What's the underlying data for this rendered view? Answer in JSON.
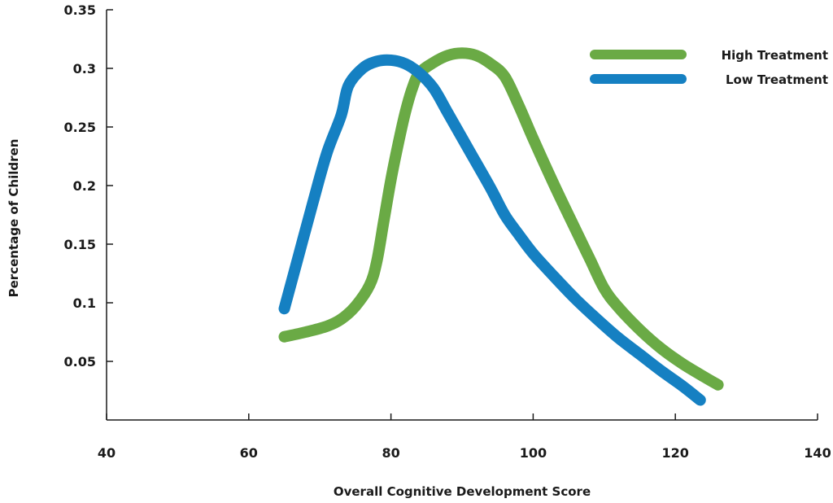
{
  "chart_data": {
    "type": "line",
    "title": "",
    "xlabel": "Overall Cognitive Development Score",
    "ylabel": "Percentage of Children",
    "xlim": [
      40,
      140
    ],
    "ylim": [
      0,
      0.35
    ],
    "x_ticks": [
      "40",
      "60",
      "80",
      "100",
      "120",
      "140"
    ],
    "x_tick_values": [
      40,
      60,
      80,
      100,
      120,
      140
    ],
    "y_ticks": [
      "0.05",
      "0.1",
      "0.15",
      "0.2",
      "0.25",
      "0.3",
      "0.35"
    ],
    "y_tick_values": [
      0.05,
      0.1,
      0.15,
      0.2,
      0.25,
      0.3,
      0.35
    ],
    "grid": false,
    "legend_position": "top-right",
    "series": [
      {
        "name": "High Treatment",
        "color": "#6aaa45",
        "points": [
          [
            65,
            0.071
          ],
          [
            68,
            0.075
          ],
          [
            71,
            0.08
          ],
          [
            73,
            0.086
          ],
          [
            75,
            0.097
          ],
          [
            77,
            0.115
          ],
          [
            78,
            0.135
          ],
          [
            79,
            0.17
          ],
          [
            80,
            0.205
          ],
          [
            81,
            0.235
          ],
          [
            82,
            0.262
          ],
          [
            83,
            0.283
          ],
          [
            84,
            0.296
          ],
          [
            86,
            0.305
          ],
          [
            88,
            0.311
          ],
          [
            90,
            0.313
          ],
          [
            92,
            0.311
          ],
          [
            94,
            0.304
          ],
          [
            96,
            0.293
          ],
          [
            98,
            0.268
          ],
          [
            100,
            0.24
          ],
          [
            103,
            0.2
          ],
          [
            106,
            0.162
          ],
          [
            108,
            0.137
          ],
          [
            110,
            0.112
          ],
          [
            112,
            0.096
          ],
          [
            115,
            0.077
          ],
          [
            118,
            0.061
          ],
          [
            121,
            0.048
          ],
          [
            124,
            0.037
          ],
          [
            126,
            0.03
          ]
        ]
      },
      {
        "name": "Low Treatment",
        "color": "#1580c2",
        "points": [
          [
            65,
            0.095
          ],
          [
            67,
            0.14
          ],
          [
            69,
            0.185
          ],
          [
            71,
            0.228
          ],
          [
            73,
            0.26
          ],
          [
            74,
            0.285
          ],
          [
            76,
            0.3
          ],
          [
            78,
            0.306
          ],
          [
            80,
            0.307
          ],
          [
            82,
            0.304
          ],
          [
            84,
            0.296
          ],
          [
            86,
            0.283
          ],
          [
            88,
            0.262
          ],
          [
            91,
            0.23
          ],
          [
            94,
            0.198
          ],
          [
            96,
            0.175
          ],
          [
            98,
            0.158
          ],
          [
            100,
            0.142
          ],
          [
            103,
            0.122
          ],
          [
            106,
            0.103
          ],
          [
            109,
            0.086
          ],
          [
            112,
            0.07
          ],
          [
            115,
            0.056
          ],
          [
            118,
            0.042
          ],
          [
            121,
            0.029
          ],
          [
            123.5,
            0.017
          ]
        ]
      }
    ]
  }
}
